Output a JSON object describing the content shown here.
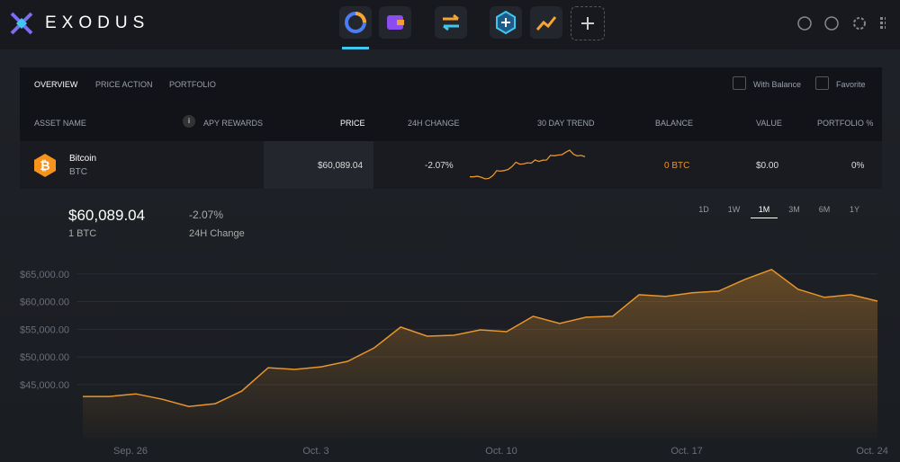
{
  "app": {
    "name": "EXODUS"
  },
  "tabs": [
    "OVERVIEW",
    "PRICE ACTION",
    "PORTFOLIO"
  ],
  "filters": [
    "With Balance",
    "Favorite"
  ],
  "columns": [
    "ASSET NAME",
    "APY REWARDS",
    "PRICE",
    "24H CHANGE",
    "30 DAY TREND",
    "BALANCE",
    "VALUE",
    "PORTFOLIO %"
  ],
  "asset": {
    "name": "Bitcoin",
    "ticker": "BTC",
    "price": "$60,089.04",
    "change": "-2.07%",
    "balance": "0 BTC",
    "value": "$0.00",
    "portfolio": "0%"
  },
  "summary": {
    "price": "$60,089.04",
    "amount": "1 BTC",
    "change": "-2.07%",
    "change_label": "24H Change"
  },
  "ranges": [
    "1D",
    "1W",
    "1M",
    "3M",
    "6M",
    "1Y"
  ],
  "active_range": 2,
  "chart_data": {
    "type": "line",
    "color": "#e8962b",
    "x": [
      0,
      1,
      2,
      3,
      4,
      5,
      6,
      7,
      8,
      9,
      10,
      11,
      12,
      13,
      14,
      15,
      16,
      17,
      18,
      19,
      20,
      21,
      22,
      23,
      24,
      25,
      26,
      27,
      28,
      29,
      30
    ],
    "values": [
      42850,
      42850,
      43330,
      42360,
      41060,
      41550,
      43830,
      48060,
      47740,
      48220,
      49200,
      51640,
      55390,
      53760,
      53920,
      54900,
      54570,
      57340,
      56040,
      57180,
      57340,
      61250,
      60930,
      61580,
      61900,
      64020,
      65810,
      62230,
      60770,
      61250,
      60089.04
    ],
    "xlim": [
      0,
      30
    ],
    "ylim": [
      35400,
      67400
    ],
    "xticks": [
      {
        "value": 1.8,
        "label": "Sep. 26"
      },
      {
        "value": 8.8,
        "label": "Oct. 3"
      },
      {
        "value": 15.8,
        "label": "Oct. 10"
      },
      {
        "value": 22.8,
        "label": "Oct. 17"
      },
      {
        "value": 29.8,
        "label": "Oct. 24"
      }
    ],
    "yticks": [
      {
        "value": 45000,
        "label": "$45,000.00"
      },
      {
        "value": 50000,
        "label": "$50,000.00"
      },
      {
        "value": 55000,
        "label": "$55,000.00"
      },
      {
        "value": 60000,
        "label": "$60,000.00"
      },
      {
        "value": 65000,
        "label": "$65,000.00"
      }
    ],
    "grid": true
  }
}
